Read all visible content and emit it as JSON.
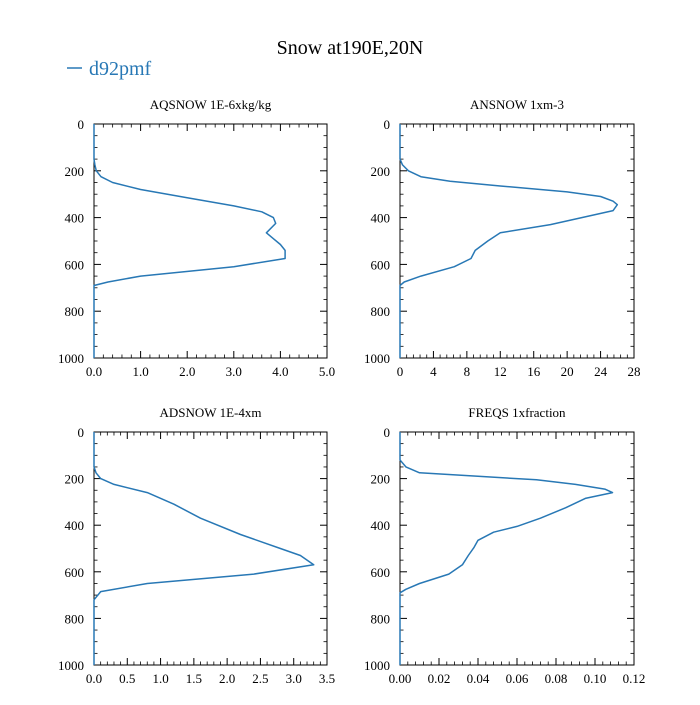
{
  "figure": {
    "title": "Snow at190E,20N",
    "legend": {
      "label": "d92pmf",
      "color": "#2878b5",
      "placement": "top-left"
    }
  },
  "chart_data": [
    {
      "type": "line",
      "title": "AQSNOW  1E-6xkg/kg",
      "xlim": [
        0,
        5
      ],
      "ylim": [
        1000,
        0
      ],
      "xticks": [
        "0.0",
        "1.0",
        "2.0",
        "3.0",
        "4.0",
        "5.0"
      ],
      "xtick_values": [
        0,
        1,
        2,
        3,
        4,
        5
      ],
      "yticks": [
        "0",
        "200",
        "400",
        "600",
        "800",
        "1000"
      ],
      "ytick_values": [
        0,
        200,
        400,
        600,
        800,
        1000
      ],
      "grid": false,
      "series": [
        {
          "name": "d92pmf",
          "color": "#2878b5",
          "points": [
            [
              0,
              0
            ],
            [
              0,
              150
            ],
            [
              0.02,
              175
            ],
            [
              0.05,
              200
            ],
            [
              0.15,
              225
            ],
            [
              0.4,
              250
            ],
            [
              1.0,
              280
            ],
            [
              2.0,
              315
            ],
            [
              3.0,
              350
            ],
            [
              3.6,
              375
            ],
            [
              3.85,
              400
            ],
            [
              3.9,
              425
            ],
            [
              3.7,
              465
            ],
            [
              3.85,
              490
            ],
            [
              4.0,
              515
            ],
            [
              4.1,
              540
            ],
            [
              4.1,
              575
            ],
            [
              3.0,
              610
            ],
            [
              1.0,
              650
            ],
            [
              0.3,
              675
            ],
            [
              0,
              690
            ],
            [
              0,
              1000
            ]
          ]
        }
      ]
    },
    {
      "type": "line",
      "title": "ANSNOW  1xm-3",
      "xlim": [
        0,
        28
      ],
      "ylim": [
        1000,
        0
      ],
      "xticks": [
        "0",
        "4",
        "8",
        "12",
        "16",
        "20",
        "24",
        "28"
      ],
      "xtick_values": [
        0,
        4,
        8,
        12,
        16,
        20,
        24,
        28
      ],
      "yticks": [
        "0",
        "200",
        "400",
        "600",
        "800",
        "1000"
      ],
      "ytick_values": [
        0,
        200,
        400,
        600,
        800,
        1000
      ],
      "grid": false,
      "series": [
        {
          "name": "d92pmf",
          "color": "#2878b5",
          "points": [
            [
              0,
              0
            ],
            [
              0,
              150
            ],
            [
              0.3,
              175
            ],
            [
              1.0,
              200
            ],
            [
              2.5,
              225
            ],
            [
              6.0,
              245
            ],
            [
              12.0,
              265
            ],
            [
              20.0,
              290
            ],
            [
              24.0,
              310
            ],
            [
              25.5,
              330
            ],
            [
              26.0,
              345
            ],
            [
              25.5,
              370
            ],
            [
              18.0,
              430
            ],
            [
              12.0,
              465
            ],
            [
              10.5,
              500
            ],
            [
              9.0,
              540
            ],
            [
              8.5,
              575
            ],
            [
              6.5,
              610
            ],
            [
              2.5,
              650
            ],
            [
              0.5,
              675
            ],
            [
              0,
              690
            ],
            [
              0,
              1000
            ]
          ]
        }
      ]
    },
    {
      "type": "line",
      "title": "ADSNOW  1E-4xm",
      "xlim": [
        0,
        3.5
      ],
      "ylim": [
        1000,
        0
      ],
      "xticks": [
        "0.0",
        "0.5",
        "1.0",
        "1.5",
        "2.0",
        "2.5",
        "3.0",
        "3.5"
      ],
      "xtick_values": [
        0,
        0.5,
        1,
        1.5,
        2,
        2.5,
        3,
        3.5
      ],
      "yticks": [
        "0",
        "200",
        "400",
        "600",
        "800",
        "1000"
      ],
      "ytick_values": [
        0,
        200,
        400,
        600,
        800,
        1000
      ],
      "grid": false,
      "series": [
        {
          "name": "d92pmf",
          "color": "#2878b5",
          "points": [
            [
              0,
              0
            ],
            [
              0,
              150
            ],
            [
              0.03,
              175
            ],
            [
              0.1,
              200
            ],
            [
              0.3,
              225
            ],
            [
              0.8,
              260
            ],
            [
              1.2,
              310
            ],
            [
              1.6,
              370
            ],
            [
              2.2,
              440
            ],
            [
              2.8,
              500
            ],
            [
              3.1,
              530
            ],
            [
              3.3,
              570
            ],
            [
              2.4,
              610
            ],
            [
              0.8,
              650
            ],
            [
              0.1,
              685
            ],
            [
              0,
              720
            ],
            [
              0,
              1000
            ]
          ]
        }
      ]
    },
    {
      "type": "line",
      "title": "FREQS  1xfraction",
      "xlim": [
        0,
        0.12
      ],
      "ylim": [
        1000,
        0
      ],
      "xticks": [
        "0.00",
        "0.02",
        "0.04",
        "0.06",
        "0.08",
        "0.10",
        "0.12"
      ],
      "xtick_values": [
        0,
        0.02,
        0.04,
        0.06,
        0.08,
        0.1,
        0.12
      ],
      "yticks": [
        "0",
        "200",
        "400",
        "600",
        "800",
        "1000"
      ],
      "ytick_values": [
        0,
        200,
        400,
        600,
        800,
        1000
      ],
      "grid": false,
      "series": [
        {
          "name": "d92pmf",
          "color": "#2878b5",
          "points": [
            [
              0,
              0
            ],
            [
              0,
              120
            ],
            [
              0.003,
              150
            ],
            [
              0.01,
              175
            ],
            [
              0.04,
              190
            ],
            [
              0.07,
              205
            ],
            [
              0.09,
              225
            ],
            [
              0.105,
              245
            ],
            [
              0.109,
              260
            ],
            [
              0.095,
              285
            ],
            [
              0.085,
              325
            ],
            [
              0.072,
              370
            ],
            [
              0.06,
              405
            ],
            [
              0.048,
              430
            ],
            [
              0.04,
              465
            ],
            [
              0.038,
              495
            ],
            [
              0.035,
              530
            ],
            [
              0.032,
              570
            ],
            [
              0.025,
              610
            ],
            [
              0.01,
              650
            ],
            [
              0.003,
              675
            ],
            [
              0,
              690
            ],
            [
              0,
              1000
            ]
          ]
        }
      ]
    }
  ]
}
